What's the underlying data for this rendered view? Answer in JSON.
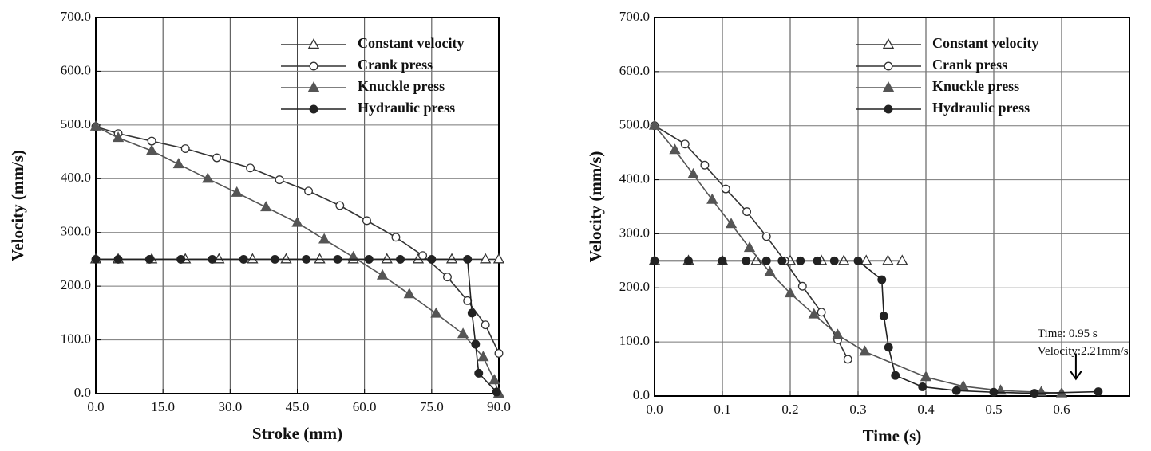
{
  "chart_data": [
    {
      "type": "line",
      "xlabel": "Stroke (mm)",
      "ylabel": "Velocity  (mm/s)",
      "xlim": [
        0,
        90
      ],
      "ylim": [
        0,
        700
      ],
      "xticks": [
        {
          "value": 0,
          "label": "0.0"
        },
        {
          "value": 15,
          "label": "15.0"
        },
        {
          "value": 30,
          "label": "30.0"
        },
        {
          "value": 45,
          "label": "45.0"
        },
        {
          "value": 60,
          "label": "60.0"
        },
        {
          "value": 75,
          "label": "75.0"
        },
        {
          "value": 90,
          "label": "90.0"
        }
      ],
      "yticks": [
        {
          "value": 0,
          "label": "0.0"
        },
        {
          "value": 100,
          "label": "100.0"
        },
        {
          "value": 200,
          "label": "200.0"
        },
        {
          "value": 300,
          "label": "300.0"
        },
        {
          "value": 400,
          "label": "400.0"
        },
        {
          "value": 500,
          "label": "500.0"
        },
        {
          "value": 600,
          "label": "600.0"
        },
        {
          "value": 700,
          "label": "700.0"
        }
      ],
      "grid": true,
      "legend": "upper right",
      "series": [
        {
          "name": "Constant velocity",
          "color": "#333333",
          "marker": "triangle-open",
          "x": [
            0,
            5,
            12.5,
            20,
            27.5,
            35,
            42.5,
            50,
            57.5,
            65,
            72,
            79.5,
            87,
            90
          ],
          "values": [
            250,
            250,
            250,
            250,
            250,
            250,
            250,
            250,
            250,
            250,
            250,
            250,
            250,
            250
          ]
        },
        {
          "name": "Crank press",
          "color": "#333333",
          "marker": "circle-open",
          "x": [
            0,
            5,
            12.5,
            20,
            27,
            34.5,
            41,
            47.5,
            54.5,
            60.5,
            67,
            73,
            78.5,
            83,
            87,
            90
          ],
          "values": [
            497,
            484,
            470,
            456,
            439,
            420,
            398,
            377,
            350,
            322,
            291,
            257,
            217,
            173,
            128,
            75
          ]
        },
        {
          "name": "Knuckle press",
          "color": "#555555",
          "marker": "triangle-filled",
          "x": [
            0,
            5,
            12.5,
            18.5,
            25,
            31.5,
            38,
            45,
            51,
            57.5,
            64,
            70,
            76,
            82,
            86.5,
            89,
            90
          ],
          "values": [
            497,
            476,
            452,
            427,
            400,
            374,
            347,
            318,
            287,
            254,
            220,
            185,
            149,
            111,
            68,
            25,
            0
          ]
        },
        {
          "name": "Hydraulic press",
          "color": "#222222",
          "marker": "circle-filled",
          "x": [
            0,
            5,
            12,
            19,
            26,
            33,
            40,
            47,
            54,
            61,
            68,
            75,
            83,
            84,
            84.8,
            85.5,
            89.5
          ],
          "values": [
            250,
            250,
            250,
            250,
            250,
            250,
            250,
            250,
            250,
            250,
            250,
            250,
            250,
            150,
            92,
            38,
            3
          ]
        }
      ]
    },
    {
      "type": "line",
      "xlabel": "Time (s)",
      "ylabel": "Velocity  (mm/s)",
      "xlim": [
        0,
        0.7
      ],
      "ylim": [
        0,
        700
      ],
      "xticks": [
        {
          "value": 0,
          "label": "0.0"
        },
        0.1,
        0.2,
        0.3,
        0.4,
        0.5,
        0.6
      ],
      "yticks": [
        {
          "value": 0,
          "label": "0.0"
        },
        {
          "value": 100,
          "label": "100.0"
        },
        {
          "value": 200,
          "label": "200.0"
        },
        {
          "value": 300,
          "label": "300.0"
        },
        {
          "value": 400,
          "label": "400.0"
        },
        {
          "value": 500,
          "label": "500.0"
        },
        {
          "value": 600,
          "label": "600.0"
        },
        {
          "value": 700,
          "label": "700.0"
        }
      ],
      "grid": true,
      "legend": "upper right",
      "annotation": [
        "Time: 0.95 s",
        "Velocity:2.21mm/s"
      ],
      "series": [
        {
          "name": "Constant velocity",
          "color": "#333333",
          "marker": "triangle-open",
          "x": [
            0,
            0.05,
            0.1,
            0.15,
            0.2,
            0.246,
            0.279,
            0.312,
            0.344,
            0.365
          ],
          "values": [
            250,
            250,
            250,
            250,
            250,
            250,
            250,
            250,
            250,
            250
          ]
        },
        {
          "name": "Crank press",
          "color": "#333333",
          "marker": "circle-open",
          "x": [
            0,
            0.045,
            0.074,
            0.105,
            0.136,
            0.165,
            0.192,
            0.218,
            0.246,
            0.27,
            0.285
          ],
          "values": [
            500,
            466,
            427,
            383,
            341,
            295,
            250,
            203,
            155,
            104,
            68
          ]
        },
        {
          "name": "Knuckle press",
          "color": "#555555",
          "marker": "triangle-filled",
          "x": [
            0,
            0.03,
            0.057,
            0.085,
            0.113,
            0.14,
            0.17,
            0.2,
            0.235,
            0.27,
            0.31,
            0.4,
            0.455,
            0.51,
            0.57,
            0.6
          ],
          "values": [
            500,
            455,
            410,
            363,
            318,
            274,
            229,
            190,
            151,
            113,
            82,
            35,
            18,
            10,
            7,
            5
          ]
        },
        {
          "name": "Hydraulic press",
          "color": "#222222",
          "marker": "circle-filled",
          "x": [
            0,
            0.05,
            0.1,
            0.135,
            0.165,
            0.188,
            0.215,
            0.24,
            0.265,
            0.3,
            0.335,
            0.338,
            0.345,
            0.355,
            0.395,
            0.445,
            0.5,
            0.56,
            0.654
          ],
          "values": [
            250,
            250,
            250,
            250,
            250,
            250,
            250,
            250,
            250,
            250,
            215,
            148,
            90,
            38,
            17,
            10,
            7,
            5,
            8
          ]
        }
      ]
    }
  ]
}
